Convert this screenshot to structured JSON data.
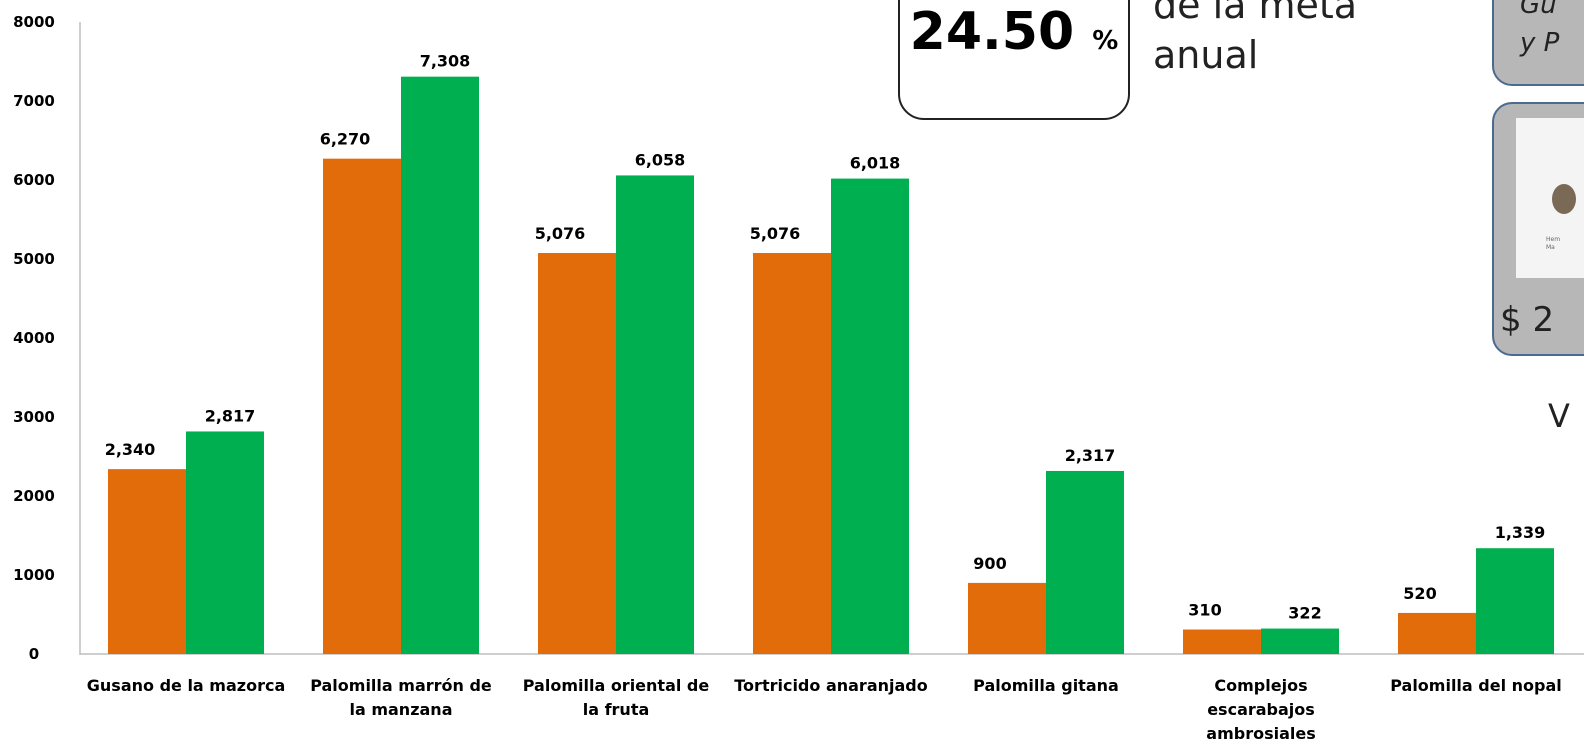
{
  "chart_data": {
    "type": "bar",
    "categories": [
      [
        "Gusano de la mazorca"
      ],
      [
        "Palomilla marrón de",
        "la manzana"
      ],
      [
        "Palomilla oriental de",
        "la fruta"
      ],
      [
        "Tortricido anaranjado"
      ],
      [
        "Palomilla gitana"
      ],
      [
        "Complejos",
        "escarabajos",
        "ambrosiales"
      ],
      [
        "Palomilla del nopal"
      ]
    ],
    "series": [
      {
        "color": "#e36c0a",
        "values": [
          2340,
          6270,
          5076,
          5076,
          900,
          310,
          520
        ],
        "labels": [
          "2,340",
          "6,270",
          "5,076",
          "5,076",
          "900",
          "310",
          "520"
        ]
      },
      {
        "color": "#00b050",
        "values": [
          2817,
          7308,
          6058,
          6018,
          2317,
          322,
          1339
        ],
        "labels": [
          "2,817",
          "7,308",
          "6,058",
          "6,018",
          "2,317",
          "322",
          "1,339"
        ]
      }
    ],
    "ylim": [
      0,
      8000
    ],
    "yticks": [
      0,
      1000,
      2000,
      3000,
      4000,
      5000,
      6000,
      7000,
      8000
    ],
    "grid": false
  },
  "meta_box": {
    "value": "24.50",
    "unit": "%"
  },
  "meta_caption": [
    "de la meta",
    "anual"
  ],
  "right_panel": {
    "top_text": [
      "Gu",
      "y P"
    ],
    "card_image_text": [
      "Hem",
      "Ma"
    ],
    "amount": "$ 2",
    "letter": "V"
  }
}
